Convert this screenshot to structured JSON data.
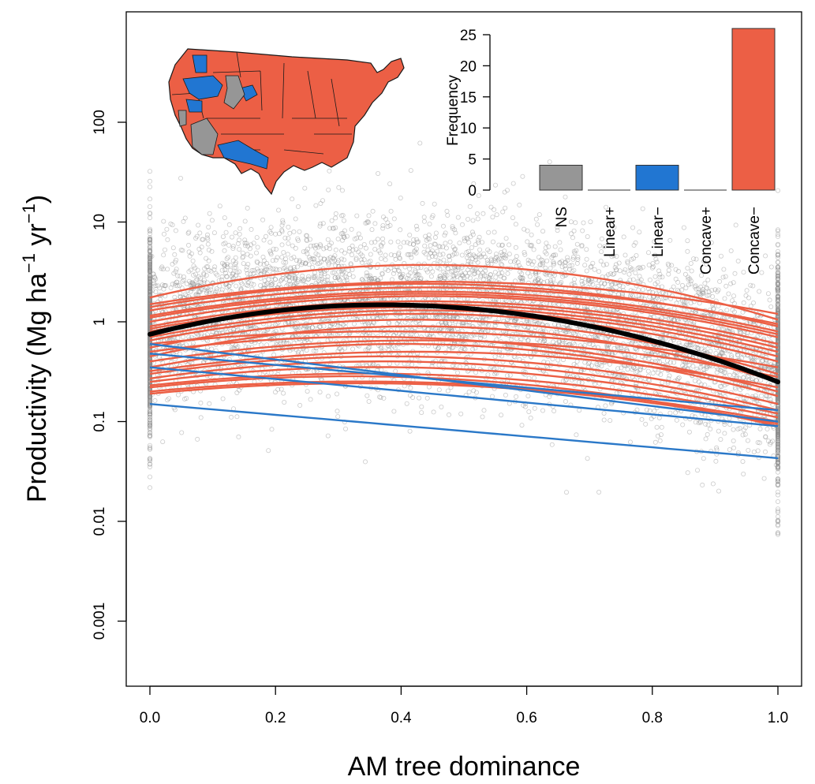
{
  "chart_data": [
    {
      "type": "scatter",
      "title": "",
      "xlabel": "AM tree dominance",
      "ylabel_parts": [
        "Productivity (Mg ha",
        "−1",
        " yr",
        "−1",
        ")"
      ],
      "xlim": [
        0,
        1
      ],
      "ylim": [
        0.0002,
        1000
      ],
      "yscale": "log",
      "xticks": [
        0.0,
        0.2,
        0.4,
        0.6,
        0.8,
        1.0
      ],
      "xtick_labels": [
        "0.0",
        "0.2",
        "0.4",
        "0.6",
        "0.8",
        "1.0"
      ],
      "yticks": [
        0.001,
        0.01,
        0.1,
        1,
        10,
        100
      ],
      "ytick_labels": [
        "0.001",
        "0.01",
        "0.1",
        "1",
        "10",
        "100"
      ],
      "scatter_color": "#8c8c8c",
      "overall_fit": {
        "name": "overall",
        "color": "#000000",
        "shape": "concave",
        "points": [
          [
            0.0,
            0.75
          ],
          [
            0.2,
            1.3
          ],
          [
            0.37,
            1.48
          ],
          [
            0.6,
            1.15
          ],
          [
            0.8,
            0.6
          ],
          [
            1.0,
            0.25
          ]
        ]
      },
      "series": [
        {
          "name": "Linear−",
          "color": "#2a78c8",
          "values": [
            [
              0,
              0.6
            ],
            [
              1,
              0.1
            ]
          ]
        },
        {
          "name": "Linear−",
          "color": "#2a78c8",
          "values": [
            [
              0,
              0.48
            ],
            [
              1,
              0.13
            ]
          ]
        },
        {
          "name": "Linear−",
          "color": "#2a78c8",
          "values": [
            [
              0,
              0.35
            ],
            [
              1,
              0.09
            ]
          ]
        },
        {
          "name": "Linear−",
          "color": "#2a78c8",
          "values": [
            [
              0,
              0.15
            ],
            [
              1,
              0.043
            ]
          ]
        },
        {
          "name": "Concave−",
          "color": "#ec5f45",
          "values": [
            [
              0,
              1.75
            ],
            [
              0.4,
              3.7
            ],
            [
              1,
              1.05
            ]
          ]
        },
        {
          "name": "Concave−",
          "color": "#ec5f45",
          "values": [
            [
              0,
              1.5
            ],
            [
              0.4,
              2.5
            ],
            [
              1,
              1.2
            ]
          ]
        },
        {
          "name": "Concave−",
          "color": "#ec5f45",
          "values": [
            [
              0,
              1.3
            ],
            [
              0.4,
              2.2
            ],
            [
              1,
              0.95
            ]
          ]
        },
        {
          "name": "Concave−",
          "color": "#ec5f45",
          "values": [
            [
              0,
              1.15
            ],
            [
              0.4,
              2.0
            ],
            [
              1,
              0.8
            ]
          ]
        },
        {
          "name": "Concave−",
          "color": "#ec5f45",
          "values": [
            [
              0,
              1.0
            ],
            [
              0.4,
              1.8
            ],
            [
              1,
              0.7
            ]
          ]
        },
        {
          "name": "Concave−",
          "color": "#ec5f45",
          "values": [
            [
              0,
              0.9
            ],
            [
              0.4,
              1.6
            ],
            [
              1,
              0.6
            ]
          ]
        },
        {
          "name": "Concave−",
          "color": "#ec5f45",
          "values": [
            [
              0,
              0.8
            ],
            [
              0.4,
              1.4
            ],
            [
              1,
              0.5
            ]
          ]
        },
        {
          "name": "Concave−",
          "color": "#ec5f45",
          "values": [
            [
              0,
              0.65
            ],
            [
              0.4,
              1.2
            ],
            [
              1,
              0.4
            ]
          ]
        },
        {
          "name": "Concave−",
          "color": "#ec5f45",
          "values": [
            [
              0,
              0.55
            ],
            [
              0.4,
              1.05
            ],
            [
              1,
              0.3
            ]
          ]
        },
        {
          "name": "Concave−",
          "color": "#ec5f45",
          "values": [
            [
              0,
              0.45
            ],
            [
              0.4,
              0.9
            ],
            [
              1,
              0.25
            ]
          ]
        },
        {
          "name": "Concave−",
          "color": "#ec5f45",
          "values": [
            [
              0,
              0.6
            ],
            [
              0.4,
              0.8
            ],
            [
              1,
              0.35
            ]
          ]
        },
        {
          "name": "Concave−",
          "color": "#ec5f45",
          "values": [
            [
              0,
              0.5
            ],
            [
              0.4,
              0.7
            ],
            [
              1,
              0.2
            ]
          ]
        },
        {
          "name": "Concave−",
          "color": "#ec5f45",
          "values": [
            [
              0,
              0.35
            ],
            [
              0.4,
              0.6
            ],
            [
              1,
              0.18
            ]
          ]
        },
        {
          "name": "Concave−",
          "color": "#ec5f45",
          "values": [
            [
              0,
              0.3
            ],
            [
              0.4,
              0.45
            ],
            [
              1,
              0.15
            ]
          ]
        },
        {
          "name": "Concave−",
          "color": "#ec5f45",
          "values": [
            [
              0,
              0.27
            ],
            [
              0.4,
              0.4
            ],
            [
              1,
              0.13
            ]
          ]
        },
        {
          "name": "Concave−",
          "color": "#ec5f45",
          "values": [
            [
              0,
              0.25
            ],
            [
              0.4,
              0.35
            ],
            [
              1,
              0.12
            ]
          ]
        },
        {
          "name": "Concave−",
          "color": "#ec5f45",
          "values": [
            [
              0,
              0.23
            ],
            [
              0.4,
              0.3
            ],
            [
              1,
              0.11
            ]
          ]
        },
        {
          "name": "Concave−",
          "color": "#ec5f45",
          "values": [
            [
              0,
              0.2
            ],
            [
              0.4,
              0.25
            ],
            [
              1,
              0.1
            ]
          ]
        },
        {
          "name": "Concave−",
          "color": "#ec5f45",
          "values": [
            [
              0,
              0.32
            ],
            [
              0.4,
              0.5
            ],
            [
              1,
              0.22
            ]
          ]
        },
        {
          "name": "Concave−",
          "color": "#ec5f45",
          "values": [
            [
              0,
              0.4
            ],
            [
              0.4,
              0.65
            ],
            [
              1,
              0.28
            ]
          ]
        },
        {
          "name": "Concave−",
          "color": "#ec5f45",
          "values": [
            [
              0,
              1.4
            ],
            [
              0.4,
              2.4
            ],
            [
              1,
              0.9
            ]
          ]
        },
        {
          "name": "Concave−",
          "color": "#ec5f45",
          "values": [
            [
              0,
              1.1
            ],
            [
              0.4,
              1.9
            ],
            [
              1,
              0.75
            ]
          ]
        },
        {
          "name": "Concave−",
          "color": "#ec5f45",
          "values": [
            [
              0,
              0.7
            ],
            [
              0.4,
              1.3
            ],
            [
              1,
              0.45
            ]
          ]
        },
        {
          "name": "Concave−",
          "color": "#ec5f45",
          "values": [
            [
              0,
              0.85
            ],
            [
              0.4,
              1.5
            ],
            [
              1,
              0.55
            ]
          ]
        },
        {
          "name": "Concave−",
          "color": "#ec5f45",
          "values": [
            [
              0,
              0.22
            ],
            [
              0.4,
              0.28
            ],
            [
              1,
              0.09
            ]
          ]
        },
        {
          "name": "Concave−",
          "color": "#ec5f45",
          "values": [
            [
              0,
              0.19
            ],
            [
              0.4,
              0.24
            ],
            [
              1,
              0.095
            ]
          ]
        }
      ]
    },
    {
      "type": "bar",
      "title": "",
      "xlabel": "",
      "ylabel": "Frequency",
      "categories": [
        "NS",
        "Linear+",
        "Linear−",
        "Concave+",
        "Concave−"
      ],
      "values": [
        4,
        0,
        4,
        0,
        26
      ],
      "colors": [
        "#969696",
        "#969696",
        "#2176d2",
        "#969696",
        "#ec5f45"
      ],
      "ylim": [
        0,
        25
      ],
      "yticks": [
        0,
        5,
        10,
        15,
        20,
        25
      ],
      "ytick_labels": [
        "0",
        "5",
        "10",
        "15",
        "20",
        "25"
      ]
    }
  ],
  "map": {
    "name": "contiguous United States ecoregions",
    "colors": {
      "concave_minus": "#ec5f45",
      "linear_minus": "#2176d2",
      "ns": "#969696"
    }
  }
}
